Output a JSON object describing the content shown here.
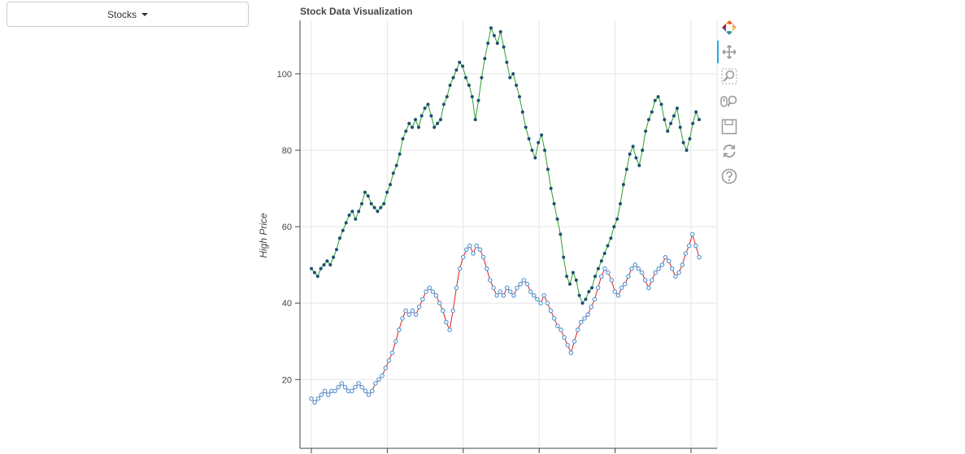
{
  "dropdown": {
    "label": "Stocks"
  },
  "colors": {
    "series_a_line": "#2ca02c",
    "series_a_marker": "#1b4f72",
    "series_b_line": "#e41a1c",
    "series_b_marker": "#5b9bd5"
  },
  "toolbar": {
    "tools": [
      "bokeh-logo-icon",
      "pan-icon",
      "box-zoom-icon",
      "wheel-zoom-icon",
      "save-icon",
      "reset-icon",
      "help-icon"
    ]
  },
  "chart_data": {
    "type": "line",
    "title": "Stock Data Visualization",
    "xlabel": "",
    "ylabel": "High Price",
    "ylim": [
      2,
      114
    ],
    "yticks": [
      20,
      40,
      60,
      80,
      100
    ],
    "x_ticks_count": 6,
    "grid": true,
    "series": [
      {
        "values": [
          49,
          48,
          47,
          49,
          50,
          51,
          50,
          52,
          54,
          57,
          59,
          61,
          63,
          64,
          62,
          64,
          66,
          69,
          68,
          66,
          65,
          64,
          65,
          66,
          69,
          71,
          74,
          76,
          79,
          83,
          85,
          87,
          86,
          88,
          86,
          89,
          91,
          92,
          89,
          86,
          87,
          88,
          92,
          94,
          97,
          99,
          101,
          103,
          102,
          99,
          97,
          94,
          88,
          93,
          99,
          104,
          108,
          112,
          110,
          108,
          111,
          107,
          103,
          99,
          100,
          97,
          94,
          90,
          86,
          83,
          80,
          78,
          82,
          84,
          80,
          75,
          70,
          66,
          62,
          58,
          52,
          47,
          45,
          48,
          46,
          42,
          40,
          41,
          43,
          44,
          47,
          49,
          51,
          53,
          55,
          57,
          60,
          62,
          66,
          71,
          75,
          79,
          81,
          78,
          76,
          80,
          85,
          88,
          90,
          93,
          94,
          92,
          88,
          85,
          87,
          89,
          91,
          86,
          82,
          80,
          83,
          87,
          90,
          88
        ]
      },
      {
        "values": [
          15,
          14,
          15,
          16,
          17,
          16,
          17,
          17,
          18,
          19,
          18,
          17,
          17,
          18,
          19,
          18,
          17,
          16,
          17,
          19,
          20,
          21,
          23,
          25,
          27,
          30,
          33,
          36,
          38,
          37,
          38,
          37,
          39,
          41,
          43,
          44,
          43,
          42,
          40,
          38,
          35,
          33,
          38,
          44,
          49,
          52,
          54,
          55,
          53,
          55,
          54,
          52,
          49,
          46,
          44,
          42,
          43,
          42,
          44,
          43,
          42,
          44,
          45,
          46,
          45,
          43,
          42,
          41,
          40,
          42,
          40,
          38,
          36,
          34,
          33,
          31,
          29,
          27,
          30,
          33,
          35,
          36,
          37,
          39,
          41,
          44,
          47,
          49,
          48,
          46,
          43,
          42,
          44,
          45,
          47,
          49,
          50,
          49,
          48,
          46,
          44,
          46,
          48,
          49,
          50,
          52,
          51,
          49,
          47,
          48,
          50,
          53,
          55,
          58,
          55,
          52
        ]
      }
    ]
  }
}
